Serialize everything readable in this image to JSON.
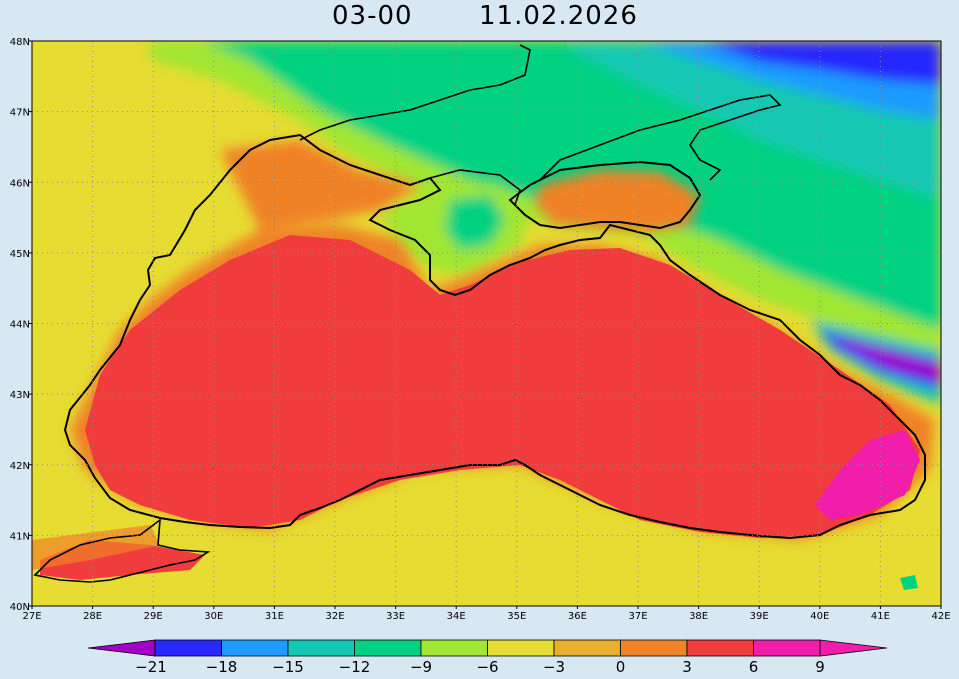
{
  "title": {
    "time": "03-00",
    "date": "11.02.2026"
  },
  "axes": {
    "lat_labels": [
      "48N",
      "47N",
      "46N",
      "45N",
      "44N",
      "43N",
      "42N",
      "41N",
      "40N"
    ],
    "lon_labels": [
      "27E",
      "28E",
      "29E",
      "30E",
      "31E",
      "32E",
      "33E",
      "34E",
      "35E",
      "36E",
      "37E",
      "38E",
      "39E",
      "40E",
      "41E",
      "42E"
    ],
    "lat_range": [
      40,
      48
    ],
    "lon_range": [
      27,
      42
    ],
    "grid": true
  },
  "colorbar": {
    "labels": [
      "-21",
      "-18",
      "-15",
      "-12",
      "-9",
      "-6",
      "-3",
      "0",
      "3",
      "6",
      "9"
    ],
    "colors": [
      "#a000c8",
      "#2828ff",
      "#1e9bff",
      "#14c8b4",
      "#00d282",
      "#a0e632",
      "#e6dc32",
      "#e6af2d",
      "#f08228",
      "#f03c3c",
      "#f01eaa"
    ],
    "left_arrow_color": "#a000c8",
    "right_arrow_color": "#f01eaa"
  },
  "colors": {
    "background": "#d8e8f3",
    "sea_warm": "#f03c3c",
    "land_cold": "#00d282",
    "coast": "#000000"
  }
}
